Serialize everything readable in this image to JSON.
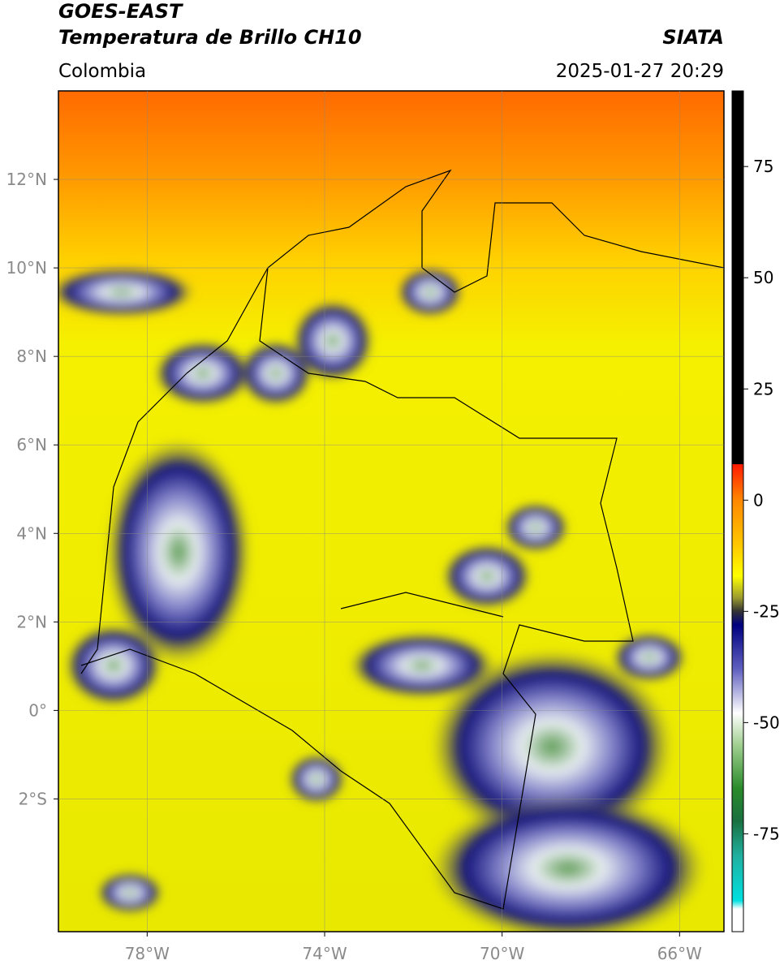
{
  "header": {
    "title": "GOES-EAST",
    "subtitle": "Temperatura de Brillo CH10",
    "source": "SIATA",
    "region": "Colombia",
    "datetime": "2025-01-27 20:29"
  },
  "map": {
    "lon_range": [
      -80,
      -65
    ],
    "lat_range": [
      -5,
      14
    ],
    "lon_ticks": [
      {
        "value": -78,
        "label": "78°W"
      },
      {
        "value": -74,
        "label": "74°W"
      },
      {
        "value": -70,
        "label": "70°W"
      },
      {
        "value": -66,
        "label": "66°W"
      }
    ],
    "lat_ticks": [
      {
        "value": 12,
        "label": "12°N"
      },
      {
        "value": 10,
        "label": "10°N"
      },
      {
        "value": 8,
        "label": "8°N"
      },
      {
        "value": 6,
        "label": "6°N"
      },
      {
        "value": 4,
        "label": "4°N"
      },
      {
        "value": 2,
        "label": "2°N"
      },
      {
        "value": 0,
        "label": "0°"
      },
      {
        "value": -2,
        "label": "2°S"
      }
    ],
    "grid": true
  },
  "colorbar": {
    "range": [
      -97,
      92
    ],
    "ticks": [
      75,
      50,
      25,
      0,
      -25,
      -50,
      -75
    ]
  }
}
